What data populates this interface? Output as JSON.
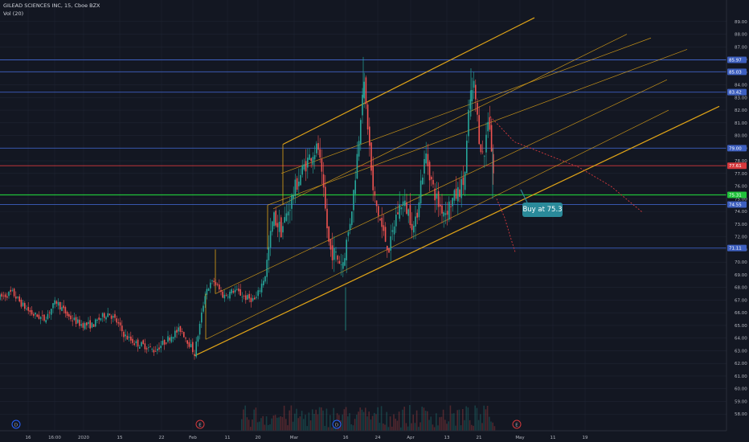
{
  "header": {
    "symbol": "GILEAD SCIENCES INC, 15, Cboe BZX",
    "indicator": "Vol (20)"
  },
  "colors": {
    "bg": "#131722",
    "grid": "#1f2433",
    "up": "#26a69a",
    "down": "#ef5350",
    "channel": "#e0a417",
    "hline": "#3d5fbf",
    "green": "#21c23b",
    "red": "#d6393d",
    "callout": "#2a8a9a"
  },
  "annotation": {
    "label": "Buy at 75.3",
    "price": 75.3
  },
  "markers": [
    "D",
    "E",
    "D",
    "E"
  ],
  "chart_data": {
    "type": "candlestick",
    "title": "GILEAD SCIENCES INC, 15, Cboe BZX",
    "ylim": [
      57,
      90
    ],
    "y_ticks": [
      58.0,
      59.0,
      60.0,
      61.0,
      62.0,
      63.0,
      64.0,
      65.0,
      66.0,
      67.0,
      68.0,
      69.0,
      70.0,
      71.0,
      72.0,
      73.0,
      74.0,
      75.0,
      76.0,
      77.0,
      78.0,
      79.0,
      80.0,
      81.0,
      82.0,
      83.0,
      84.0,
      85.0,
      86.0,
      87.0,
      88.0,
      89.0
    ],
    "x_ticks": [
      "16",
      "16:00",
      "2020",
      "15",
      "22",
      "Feb",
      "11",
      "20",
      "Mar",
      "16",
      "24",
      "Apr",
      "13",
      "21",
      "May",
      "11",
      "19"
    ],
    "price_levels": [
      {
        "value": 85.97,
        "label": "85.97",
        "color": "#3d5fbf"
      },
      {
        "value": 85.03,
        "label": "85.03",
        "color": "#3d5fbf"
      },
      {
        "value": 83.42,
        "label": "83.42",
        "color": "#3d5fbf"
      },
      {
        "value": 79.0,
        "label": "79.00",
        "color": "#3d5fbf"
      },
      {
        "value": 77.61,
        "label": "77.61",
        "color": "#d6393d"
      },
      {
        "value": 75.31,
        "label": "75.31",
        "color": "#21c23b"
      },
      {
        "value": 74.55,
        "label": "74.55",
        "color": "#3d5fbf"
      },
      {
        "value": 71.11,
        "label": "71.11",
        "color": "#3d5fbf"
      }
    ],
    "price_path": [
      [
        0,
        67.2
      ],
      [
        15,
        67.6
      ],
      [
        28,
        66.6
      ],
      [
        40,
        65.9
      ],
      [
        55,
        65.5
      ],
      [
        70,
        66.9
      ],
      [
        85,
        65.7
      ],
      [
        100,
        65.1
      ],
      [
        115,
        65.0
      ],
      [
        125,
        65.6
      ],
      [
        135,
        66.0
      ],
      [
        145,
        65.3
      ],
      [
        155,
        64.2
      ],
      [
        168,
        63.6
      ],
      [
        180,
        63.4
      ],
      [
        192,
        63.0
      ],
      [
        205,
        63.7
      ],
      [
        215,
        64.3
      ],
      [
        225,
        64.7
      ],
      [
        235,
        63.6
      ],
      [
        242,
        62.8
      ],
      [
        248,
        64.8
      ],
      [
        256,
        67.8
      ],
      [
        266,
        68.5
      ],
      [
        278,
        67.3
      ],
      [
        292,
        67.8
      ],
      [
        305,
        67.2
      ],
      [
        318,
        67.0
      ],
      [
        330,
        69.0
      ],
      [
        340,
        73.6
      ],
      [
        350,
        72.5
      ],
      [
        358,
        74.0
      ],
      [
        368,
        76.0
      ],
      [
        378,
        77.5
      ],
      [
        388,
        78.6
      ],
      [
        396,
        79.0
      ],
      [
        404,
        74.5
      ],
      [
        410,
        71.0
      ],
      [
        418,
        70.5
      ],
      [
        426,
        69.8
      ],
      [
        434,
        72.5
      ],
      [
        440,
        75.5
      ],
      [
        446,
        79.5
      ],
      [
        452,
        84.5
      ],
      [
        458,
        80.5
      ],
      [
        464,
        75.5
      ],
      [
        470,
        74.0
      ],
      [
        478,
        72.0
      ],
      [
        485,
        71.0
      ],
      [
        492,
        73.5
      ],
      [
        500,
        74.8
      ],
      [
        508,
        74.0
      ],
      [
        516,
        72.5
      ],
      [
        524,
        76.5
      ],
      [
        530,
        78.5
      ],
      [
        538,
        76.0
      ],
      [
        546,
        74.5
      ],
      [
        554,
        74.0
      ],
      [
        562,
        74.8
      ],
      [
        570,
        75.5
      ],
      [
        578,
        76.5
      ],
      [
        584,
        82.5
      ],
      [
        590,
        84.0
      ],
      [
        596,
        80.0
      ],
      [
        602,
        78.0
      ],
      [
        608,
        82.0
      ],
      [
        612,
        78.5
      ],
      [
        615,
        76.0
      ]
    ],
    "channel_lines": [
      {
        "x1": 242,
        "y1": 62.6,
        "x2": 895,
        "y2": 82.3,
        "weight": "major"
      },
      {
        "x1": 256,
        "y1": 63.9,
        "x2": 832,
        "y2": 82.0,
        "weight": "minor"
      },
      {
        "x1": 268,
        "y1": 67.5,
        "x2": 830,
        "y2": 84.4,
        "weight": "minor"
      },
      {
        "x1": 333,
        "y1": 74.5,
        "x2": 855,
        "y2": 86.8,
        "weight": "minor"
      },
      {
        "x1": 350,
        "y1": 77.0,
        "x2": 810,
        "y2": 87.7,
        "weight": "minor"
      },
      {
        "x1": 340,
        "y1": 74.2,
        "x2": 780,
        "y2": 88.0,
        "weight": "minor"
      },
      {
        "x1": 352,
        "y1": 79.3,
        "x2": 665,
        "y2": 89.3,
        "weight": "major"
      }
    ],
    "vertical_segments": [
      {
        "x": 256,
        "y1": 63.9,
        "y2": 67.5
      },
      {
        "x": 268,
        "y1": 67.5,
        "y2": 71.0
      },
      {
        "x": 333,
        "y1": 71.0,
        "y2": 74.5
      },
      {
        "x": 352,
        "y1": 74.5,
        "y2": 79.3
      }
    ],
    "projections": [
      {
        "points": [
          [
            610,
            81.5
          ],
          [
            640,
            79.5
          ],
          [
            680,
            78.5
          ],
          [
            720,
            77.5
          ],
          [
            760,
            76.0
          ],
          [
            800,
            73.9
          ]
        ]
      },
      {
        "points": [
          [
            618,
            75.0
          ],
          [
            628,
            73.5
          ],
          [
            636,
            71.8
          ],
          [
            641,
            70.8
          ]
        ]
      }
    ],
    "volume": {
      "start_x": 300,
      "end_x": 615,
      "max": 1
    }
  }
}
